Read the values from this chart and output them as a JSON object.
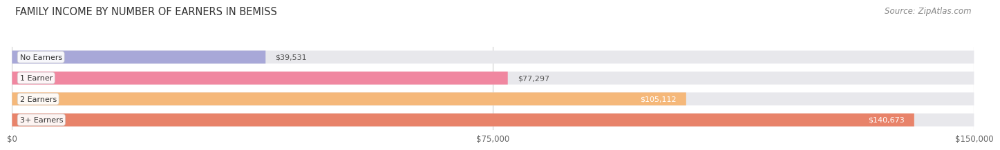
{
  "title": "FAMILY INCOME BY NUMBER OF EARNERS IN BEMISS",
  "source": "Source: ZipAtlas.com",
  "categories": [
    "No Earners",
    "1 Earner",
    "2 Earners",
    "3+ Earners"
  ],
  "values": [
    39531,
    77297,
    105112,
    140673
  ],
  "bar_colors": [
    "#a8a8d8",
    "#f087a0",
    "#f5b87a",
    "#e8836a"
  ],
  "bar_bg_color": "#e8e8ec",
  "value_label_colors": [
    "#555555",
    "#555555",
    "#ffffff",
    "#ffffff"
  ],
  "max_value": 150000,
  "xticks": [
    0,
    75000,
    150000
  ],
  "xtick_labels": [
    "$0",
    "$75,000",
    "$150,000"
  ],
  "background_color": "#ffffff",
  "title_fontsize": 10.5,
  "source_fontsize": 8.5,
  "bar_height": 0.62,
  "bar_gap": 0.38
}
